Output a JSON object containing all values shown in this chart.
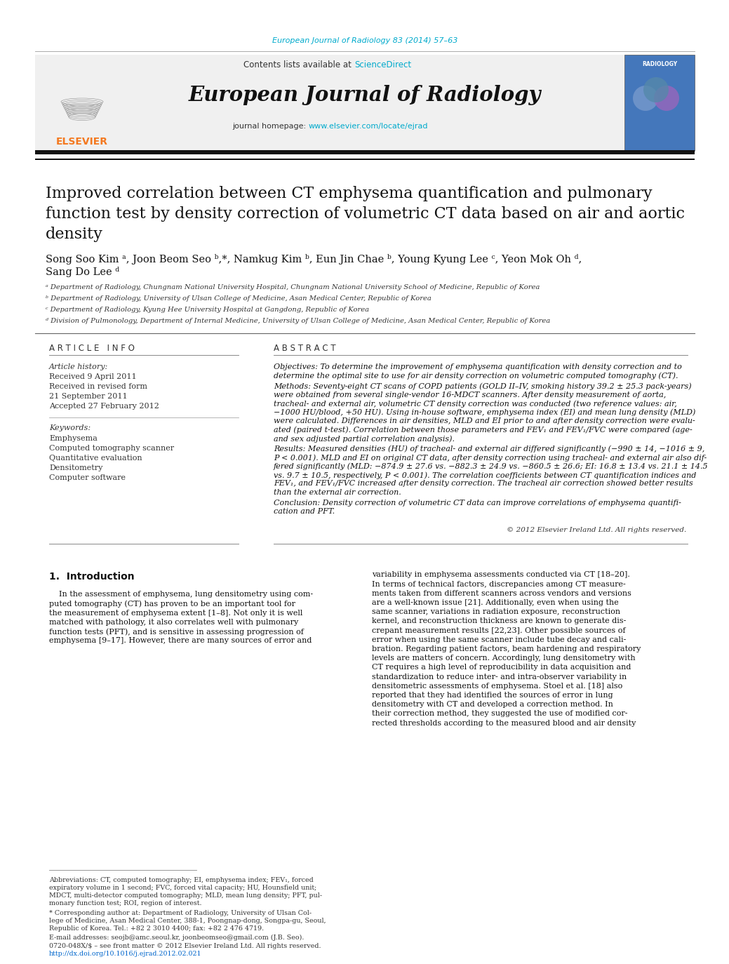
{
  "fig_width": 10.2,
  "fig_height": 13.51,
  "dpi": 100,
  "bg_color": "#ffffff",
  "journal_ref": "European Journal of Radiology 83 (2014) 57–63",
  "journal_ref_color": "#00aacc",
  "sciencedirect_color": "#00aacc",
  "journal_name": "European Journal of Radiology",
  "journal_homepage_url": "www.elsevier.com/locate/ejrad",
  "journal_homepage_color": "#00aacc",
  "article_title": "Improved correlation between CT emphysema quantification and pulmonary\nfunction test by density correction of volumetric CT data based on air and aortic\ndensity",
  "authors_line1": "Song Soo Kim ᵃ, Joon Beom Seo ᵇ,*, Namkug Kim ᵇ, Eun Jin Chae ᵇ, Young Kyung Lee ᶜ, Yeon Mok Oh ᵈ,",
  "authors_line2": "Sang Do Lee ᵈ",
  "affil_a": "ᵃ Department of Radiology, Chungnam National University Hospital, Chungnam National University School of Medicine, Republic of Korea",
  "affil_b": "ᵇ Department of Radiology, University of Ulsan College of Medicine, Asan Medical Center, Republic of Korea",
  "affil_c": "ᶜ Department of Radiology, Kyung Hee University Hospital at Gangdong, Republic of Korea",
  "affil_d": "ᵈ Division of Pulmonology, Department of Internal Medicine, University of Ulsan College of Medicine, Asan Medical Center, Republic of Korea",
  "article_info_header": "A R T I C L E   I N F O",
  "abstract_header": "A B S T R A C T",
  "article_history_label": "Article history:",
  "received": "Received 9 April 2011",
  "received_revised1": "Received in revised form",
  "received_revised2": "21 September 2011",
  "accepted": "Accepted 27 February 2012",
  "keywords_label": "Keywords:",
  "keywords": [
    "Emphysema",
    "Computed tomography scanner",
    "Quantitative evaluation",
    "Densitometry",
    "Computer software"
  ],
  "abstract_objectives": "Objectives: To determine the improvement of emphysema quantification with density correction and to\ndetermine the optimal site to use for air density correction on volumetric computed tomography (CT).",
  "abstract_methods": "Methods: Seventy-eight CT scans of COPD patients (GOLD II–IV, smoking history 39.2 ± 25.3 pack-years)\nwere obtained from several single-vendor 16-MDCT scanners. After density measurement of aorta,\ntracheal- and external air, volumetric CT density correction was conducted (two reference values: air,\n−1000 HU/blood, +50 HU). Using in-house software, emphysema index (EI) and mean lung density (MLD)\nwere calculated. Differences in air densities, MLD and EI prior to and after density correction were evalu-\nated (paired t-test). Correlation between those parameters and FEV₁ and FEV₁/FVC were compared (age-\nand sex adjusted partial correlation analysis).",
  "abstract_results": "Results: Measured densities (HU) of tracheal- and external air differed significantly (−990 ± 14, −1016 ± 9,\nP < 0.001). MLD and EI on original CT data, after density correction using tracheal- and external air also dif-\nfered significantly (MLD: −874.9 ± 27.6 vs. −882.3 ± 24.9 vs. −860.5 ± 26.6; EI: 16.8 ± 13.4 vs. 21.1 ± 14.5\nvs. 9.7 ± 10.5, respectively, P < 0.001). The correlation coefficients between CT quantification indices and\nFEV₁, and FEV₁/FVC increased after density correction. The tracheal air correction showed better results\nthan the external air correction.",
  "abstract_conclusion": "Conclusion: Density correction of volumetric CT data can improve correlations of emphysema quantifi-\ncation and PFT.",
  "copyright": "© 2012 Elsevier Ireland Ltd. All rights reserved.",
  "intro_header": "1.  Introduction",
  "intro_left_lines": [
    "    In the assessment of emphysema, lung densitometry using com-",
    "puted tomography (CT) has proven to be an important tool for",
    "the measurement of emphysema extent [1–8]. Not only it is well",
    "matched with pathology, it also correlates well with pulmonary",
    "function tests (PFT), and is sensitive in assessing progression of",
    "emphysema [9–17]. However, there are many sources of error and"
  ],
  "intro_right_lines": [
    "variability in emphysema assessments conducted via CT [18–20].",
    "In terms of technical factors, discrepancies among CT measure-",
    "ments taken from different scanners across vendors and versions",
    "are a well-known issue [21]. Additionally, even when using the",
    "same scanner, variations in radiation exposure, reconstruction",
    "kernel, and reconstruction thickness are known to generate dis-",
    "crepant measurement results [22,23]. Other possible sources of",
    "error when using the same scanner include tube decay and cali-",
    "bration. Regarding patient factors, beam hardening and respiratory",
    "levels are matters of concern. Accordingly, lung densitometry with",
    "CT requires a high level of reproducibility in data acquisition and",
    "standardization to reduce inter- and intra-observer variability in",
    "densitometric assessments of emphysema. Stoel et al. [18] also",
    "reported that they had identified the sources of error in lung",
    "densitometry with CT and developed a correction method. In",
    "their correction method, they suggested the use of modified cor-",
    "rected thresholds according to the measured blood and air density"
  ],
  "footnote_abbrev_lines": [
    "Abbreviations: CT, computed tomography; EI, emphysema index; FEV₁, forced",
    "expiratory volume in 1 second; FVC, forced vital capacity; HU, Hounsfield unit;",
    "MDCT, multi-detector computed tomography; MLD, mean lung density; PFT, pul-",
    "monary function test; ROI, region of interest."
  ],
  "footnote_corresponding_lines": [
    "* Corresponding author at: Department of Radiology, University of Ulsan Col-",
    "lege of Medicine, Asan Medical Center, 388-1, Poongnap-dong, Songpa-gu, Seoul,",
    "Republic of Korea. Tel.: +82 2 3010 4400; fax: +82 2 476 4719."
  ],
  "footnote_email": "E-mail addresses: seojb@amc.seoul.kr, joonbeomseo@gmail.com (J.B. Seo).",
  "footnote_issn": "0720-048X/$ – see front matter © 2012 Elsevier Ireland Ltd. All rights reserved.",
  "footnote_doi": "http://dx.doi.org/10.1016/j.ejrad.2012.02.021",
  "link_color": "#0066cc",
  "elsevier_orange": "#f47920",
  "thick_line_color": "#111111"
}
